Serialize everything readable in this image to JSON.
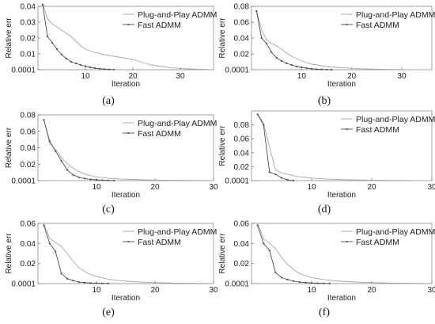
{
  "chart_data": [
    {
      "type": "line",
      "panel_label": "(a)",
      "xlabel": "Iteration",
      "ylabel": "Relative err",
      "xlim": [
        0,
        37
      ],
      "ylim": [
        0,
        0.04
      ],
      "xticks": [
        10,
        20,
        30
      ],
      "yticks": [
        0.0001,
        0.01,
        0.02,
        0.03,
        0.04
      ],
      "ytick_labels": [
        "0.0001",
        "0.01",
        "0.02",
        "0.03",
        "0.04"
      ],
      "legend_position": "top-right",
      "series": [
        {
          "name": "Plug-and-Play ADMM",
          "color": "#a6a6a6",
          "x": [
            1,
            2,
            3,
            4,
            5,
            6,
            7,
            8,
            9,
            10,
            12,
            14,
            16,
            18,
            20,
            22,
            24,
            26,
            28,
            30,
            32,
            34,
            36
          ],
          "y": [
            0.042,
            0.032,
            0.029,
            0.027,
            0.025,
            0.023,
            0.021,
            0.018,
            0.015,
            0.013,
            0.011,
            0.0095,
            0.0085,
            0.0075,
            0.0065,
            0.0045,
            0.003,
            0.002,
            0.0012,
            0.0008,
            0.0005,
            0.0003,
            0.0001
          ]
        },
        {
          "name": "Fast ADMM",
          "color": "#4d4d4d",
          "markers": true,
          "x": [
            1,
            2,
            3,
            4,
            5,
            6,
            7,
            8,
            9,
            10,
            11,
            12,
            13,
            14,
            15,
            16
          ],
          "y": [
            0.041,
            0.021,
            0.017,
            0.013,
            0.0095,
            0.007,
            0.005,
            0.004,
            0.003,
            0.0022,
            0.0015,
            0.001,
            0.0006,
            0.0004,
            0.0002,
            0.0001
          ]
        }
      ]
    },
    {
      "type": "line",
      "panel_label": "(b)",
      "xlabel": "Iteration",
      "ylabel": "Relative err",
      "xlim": [
        0,
        36
      ],
      "ylim": [
        0,
        0.08
      ],
      "xticks": [
        10,
        20,
        30
      ],
      "yticks": [
        0.0001,
        0.02,
        0.04,
        0.06,
        0.08
      ],
      "ytick_labels": [
        "0.0001",
        "0.02",
        "0.04",
        "0.06",
        "0.08"
      ],
      "legend_position": "top-right",
      "series": [
        {
          "name": "Plug-and-Play ADMM",
          "color": "#a6a6a6",
          "x": [
            1,
            2,
            3,
            4,
            5,
            6,
            7,
            8,
            9,
            10,
            12,
            14,
            16,
            18,
            20,
            22,
            24,
            26,
            28,
            30,
            32,
            34,
            36
          ],
          "y": [
            0.075,
            0.05,
            0.038,
            0.033,
            0.03,
            0.026,
            0.021,
            0.017,
            0.014,
            0.011,
            0.007,
            0.005,
            0.0035,
            0.0025,
            0.0018,
            0.0012,
            0.0008,
            0.0005,
            0.0003,
            0.0002,
            0.0001,
            0.0001,
            0.0001
          ]
        },
        {
          "name": "Fast ADMM",
          "color": "#4d4d4d",
          "markers": true,
          "x": [
            1,
            2,
            3,
            4,
            5,
            6,
            7,
            8,
            9,
            10,
            11,
            12,
            13,
            14,
            15,
            16
          ],
          "y": [
            0.074,
            0.04,
            0.033,
            0.022,
            0.015,
            0.011,
            0.008,
            0.006,
            0.004,
            0.003,
            0.002,
            0.0012,
            0.0007,
            0.0004,
            0.0002,
            0.0001
          ]
        }
      ]
    },
    {
      "type": "line",
      "panel_label": "(c)",
      "xlabel": "Iteration",
      "ylabel": "Relative err",
      "xlim": [
        0,
        30
      ],
      "ylim": [
        0,
        0.08
      ],
      "xticks": [
        10,
        20,
        30
      ],
      "yticks": [
        0.0001,
        0.02,
        0.04,
        0.06,
        0.08
      ],
      "ytick_labels": [
        "0.0001",
        "0.02",
        "0.04",
        "0.06",
        "0.08"
      ],
      "legend_position": "top-right",
      "series": [
        {
          "name": "Plug-and-Play ADMM",
          "color": "#a6a6a6",
          "x": [
            1,
            2,
            3,
            4,
            5,
            6,
            7,
            8,
            9,
            10,
            12,
            14,
            16,
            18,
            20,
            22,
            24,
            26,
            28,
            30
          ],
          "y": [
            0.075,
            0.045,
            0.038,
            0.028,
            0.021,
            0.015,
            0.011,
            0.008,
            0.006,
            0.0045,
            0.003,
            0.002,
            0.0014,
            0.001,
            0.0007,
            0.0005,
            0.0004,
            0.0003,
            0.0002,
            0.0001
          ]
        },
        {
          "name": "Fast ADMM",
          "color": "#4d4d4d",
          "markers": true,
          "x": [
            1,
            2,
            3,
            4,
            5,
            6,
            7,
            8,
            9,
            10,
            11,
            12,
            13
          ],
          "y": [
            0.074,
            0.048,
            0.036,
            0.024,
            0.013,
            0.007,
            0.004,
            0.0025,
            0.0015,
            0.001,
            0.0006,
            0.0003,
            0.0001
          ]
        }
      ]
    },
    {
      "type": "line",
      "panel_label": "(d)",
      "xlabel": "Iteration",
      "ylabel": "Relative err",
      "xlim": [
        0,
        30
      ],
      "ylim": [
        0,
        0.1
      ],
      "xticks": [
        10,
        20,
        30
      ],
      "yticks": [
        0.0001,
        0.02,
        0.04,
        0.06,
        0.08
      ],
      "ytick_labels": [
        "0.0001",
        "0.02",
        "0.04",
        "0.06",
        "0.08"
      ],
      "legend_position": "top-right",
      "series": [
        {
          "name": "Plug-and-Play ADMM",
          "color": "#a6a6a6",
          "x": [
            1,
            2,
            3,
            4,
            5,
            6,
            7,
            8,
            9,
            10,
            12,
            14,
            16,
            18,
            20,
            22,
            24,
            26,
            28,
            30
          ],
          "y": [
            0.096,
            0.082,
            0.048,
            0.016,
            0.011,
            0.009,
            0.007,
            0.0055,
            0.0045,
            0.0035,
            0.0025,
            0.0018,
            0.0013,
            0.0009,
            0.0006,
            0.0004,
            0.0003,
            0.0002,
            0.0001,
            0.0001
          ]
        },
        {
          "name": "Fast ADMM",
          "color": "#4d4d4d",
          "markers": true,
          "x": [
            1,
            2,
            3,
            4,
            5,
            6,
            7
          ],
          "y": [
            0.095,
            0.08,
            0.012,
            0.009,
            0.004,
            0.001,
            0.0001
          ]
        }
      ]
    },
    {
      "type": "line",
      "panel_label": "(e)",
      "xlabel": "Iteration",
      "ylabel": "Relative err",
      "xlim": [
        0,
        30
      ],
      "ylim": [
        0,
        0.06
      ],
      "xticks": [
        10,
        20,
        30
      ],
      "yticks": [
        0.0001,
        0.02,
        0.04,
        0.06
      ],
      "ytick_labels": [
        "0.0001",
        "0.02",
        "0.04",
        "0.06"
      ],
      "legend_position": "top-right",
      "series": [
        {
          "name": "Plug-and-Play ADMM",
          "color": "#a6a6a6",
          "x": [
            1,
            2,
            3,
            4,
            5,
            6,
            7,
            8,
            9,
            10,
            12,
            14,
            16,
            18,
            20,
            22,
            24,
            26,
            28,
            30
          ],
          "y": [
            0.06,
            0.045,
            0.041,
            0.037,
            0.03,
            0.022,
            0.016,
            0.012,
            0.009,
            0.007,
            0.0045,
            0.003,
            0.002,
            0.0014,
            0.001,
            0.0007,
            0.0005,
            0.0003,
            0.0002,
            0.0001
          ]
        },
        {
          "name": "Fast ADMM",
          "color": "#4d4d4d",
          "markers": true,
          "x": [
            1,
            2,
            3,
            4,
            5,
            6,
            7,
            8,
            9,
            10,
            11,
            12
          ],
          "y": [
            0.058,
            0.04,
            0.032,
            0.01,
            0.005,
            0.003,
            0.0015,
            0.001,
            0.0006,
            0.0004,
            0.0002,
            0.0001
          ]
        }
      ]
    },
    {
      "type": "line",
      "panel_label": "(f)",
      "xlabel": "Iteration",
      "ylabel": "Relative err",
      "xlim": [
        0,
        30
      ],
      "ylim": [
        0,
        0.06
      ],
      "xticks": [
        10,
        20,
        30
      ],
      "yticks": [
        0.0001,
        0.02,
        0.04,
        0.06
      ],
      "ytick_labels": [
        "0.0001",
        "0.02",
        "0.04",
        "0.06"
      ],
      "legend_position": "top-right",
      "series": [
        {
          "name": "Plug-and-Play ADMM",
          "color": "#a6a6a6",
          "x": [
            1,
            2,
            3,
            4,
            5,
            6,
            7,
            8,
            9,
            10,
            12,
            14,
            16,
            18,
            20,
            22,
            24,
            26,
            28,
            30
          ],
          "y": [
            0.06,
            0.045,
            0.04,
            0.035,
            0.026,
            0.019,
            0.014,
            0.01,
            0.008,
            0.006,
            0.004,
            0.0028,
            0.002,
            0.0014,
            0.001,
            0.0007,
            0.0005,
            0.0003,
            0.0002,
            0.0001
          ]
        },
        {
          "name": "Fast ADMM",
          "color": "#4d4d4d",
          "markers": true,
          "x": [
            1,
            2,
            3,
            4,
            5,
            6,
            7,
            8,
            9,
            10,
            11,
            12,
            13
          ],
          "y": [
            0.058,
            0.04,
            0.033,
            0.011,
            0.006,
            0.004,
            0.0025,
            0.0015,
            0.001,
            0.0006,
            0.0004,
            0.0002,
            0.0001
          ]
        }
      ]
    }
  ]
}
